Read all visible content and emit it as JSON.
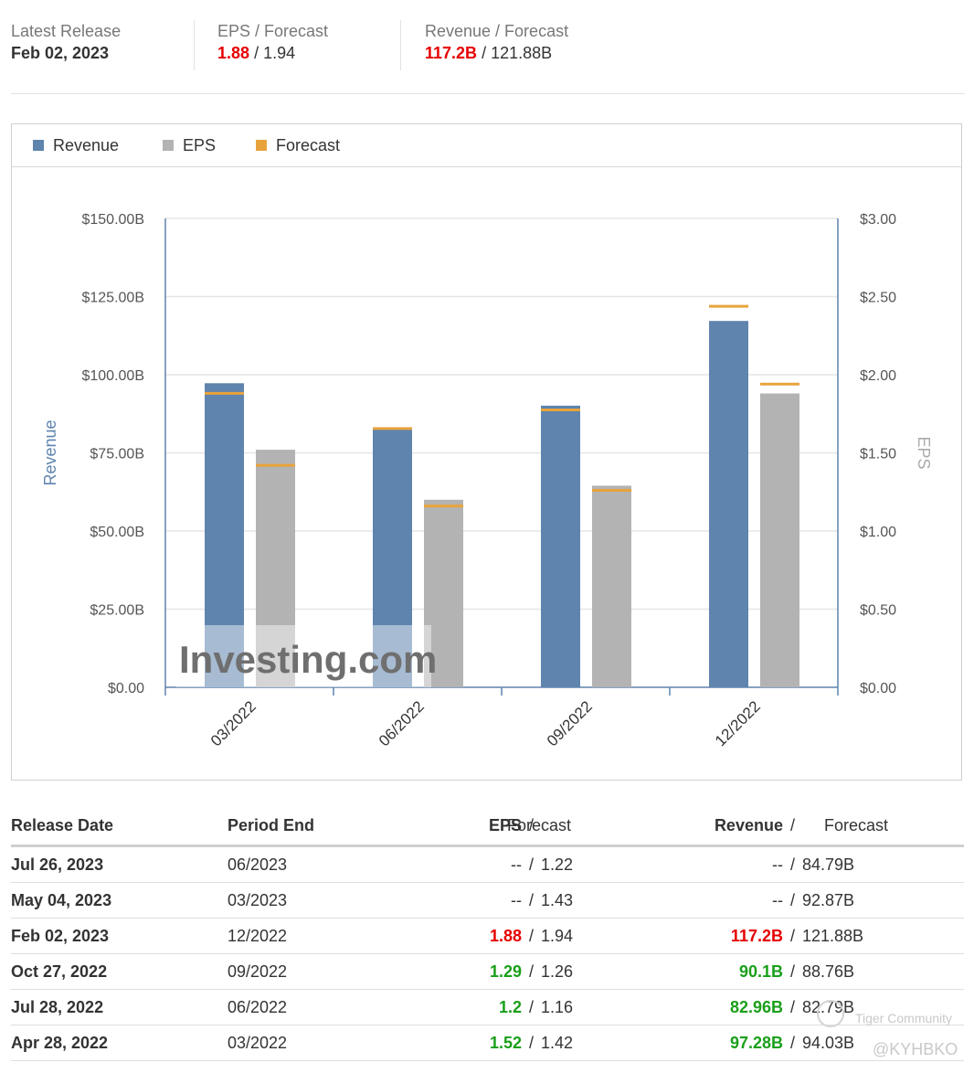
{
  "summary": {
    "latest_release": {
      "label": "Latest Release",
      "value": "Feb 02, 2023"
    },
    "eps": {
      "label": "EPS / Forecast",
      "actual": "1.88",
      "forecast": "1.94"
    },
    "revenue": {
      "label": "Revenue / Forecast",
      "actual": "117.2B",
      "forecast": "121.88B"
    }
  },
  "legend": {
    "revenue": "Revenue",
    "eps": "EPS",
    "forecast": "Forecast"
  },
  "colors": {
    "revenue": "#5f84ae",
    "eps": "#b3b3b3",
    "forecast": "#e8a33c",
    "axis": "#5f84ae",
    "grid": "#e6e6e6",
    "red": "#e60000",
    "green": "#1a9f1a"
  },
  "chart_data": {
    "type": "bar",
    "categories": [
      "03/2022",
      "06/2022",
      "09/2022",
      "12/2022"
    ],
    "series": [
      {
        "name": "Revenue",
        "axis": "left",
        "values": [
          97.28,
          82.96,
          90.1,
          117.2
        ],
        "forecast": [
          94.03,
          82.79,
          88.76,
          121.88
        ]
      },
      {
        "name": "EPS",
        "axis": "right",
        "values": [
          1.52,
          1.2,
          1.29,
          1.88
        ],
        "forecast": [
          1.42,
          1.16,
          1.26,
          1.94
        ]
      }
    ],
    "y_left": {
      "label": "Revenue",
      "min": 0,
      "max": 150,
      "ticks": [
        "$0.00",
        "$25.00B",
        "$50.00B",
        "$75.00B",
        "$100.00B",
        "$125.00B",
        "$150.00B"
      ]
    },
    "y_right": {
      "label": "EPS",
      "min": 0,
      "max": 3,
      "ticks": [
        "$0.00",
        "$0.50",
        "$1.00",
        "$1.50",
        "$2.00",
        "$2.50",
        "$3.00"
      ]
    },
    "watermark": "Investing.com"
  },
  "table": {
    "headers": {
      "release_date": "Release Date",
      "period_end": "Period End",
      "eps": "EPS",
      "eps_forecast": "Forecast",
      "revenue": "Revenue",
      "revenue_forecast": "Forecast",
      "separator": "/"
    },
    "rows": [
      {
        "release_date": "Jul 26, 2023",
        "period_end": "06/2023",
        "eps": "--",
        "eps_forecast": "1.22",
        "revenue": "--",
        "revenue_forecast": "84.79B",
        "status": "none"
      },
      {
        "release_date": "May 04, 2023",
        "period_end": "03/2023",
        "eps": "--",
        "eps_forecast": "1.43",
        "revenue": "--",
        "revenue_forecast": "92.87B",
        "status": "none"
      },
      {
        "release_date": "Feb 02, 2023",
        "period_end": "12/2022",
        "eps": "1.88",
        "eps_forecast": "1.94",
        "revenue": "117.2B",
        "revenue_forecast": "121.88B",
        "status": "miss"
      },
      {
        "release_date": "Oct 27, 2022",
        "period_end": "09/2022",
        "eps": "1.29",
        "eps_forecast": "1.26",
        "revenue": "90.1B",
        "revenue_forecast": "88.76B",
        "status": "beat"
      },
      {
        "release_date": "Jul 28, 2022",
        "period_end": "06/2022",
        "eps": "1.2",
        "eps_forecast": "1.16",
        "revenue": "82.96B",
        "revenue_forecast": "82.79B",
        "status": "beat"
      },
      {
        "release_date": "Apr 28, 2022",
        "period_end": "03/2022",
        "eps": "1.52",
        "eps_forecast": "1.42",
        "revenue": "97.28B",
        "revenue_forecast": "94.03B",
        "status": "beat"
      }
    ]
  },
  "watermarks": {
    "community": "Tiger Community",
    "user": "@KYHBKO"
  }
}
